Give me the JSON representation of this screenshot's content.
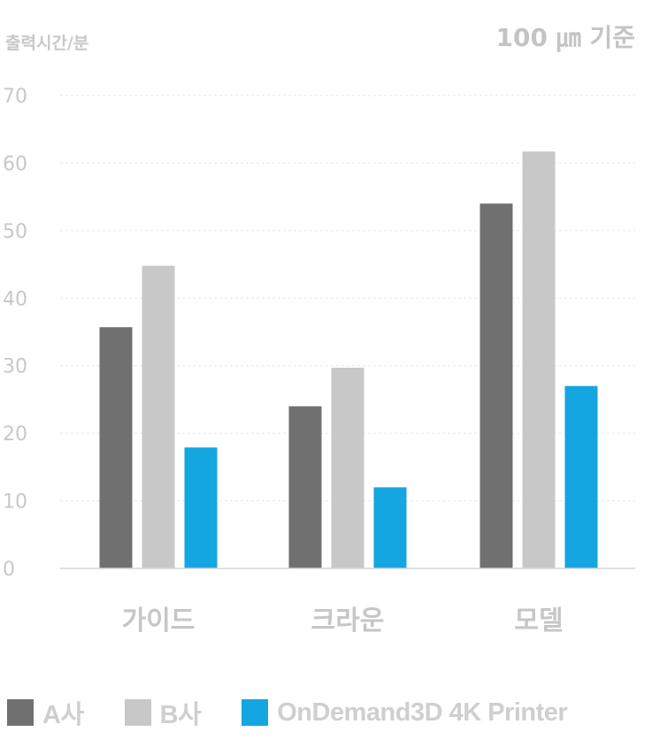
{
  "chart_data": {
    "type": "bar",
    "ylabel": "출력시간/분",
    "note": "100 ㎛ 기준",
    "categories": [
      "가이드",
      "크라운",
      "모델"
    ],
    "ylim": [
      0,
      70
    ],
    "yticks": [
      "0",
      "10",
      "20",
      "30",
      "40",
      "50",
      "60",
      "70"
    ],
    "grid": true,
    "legend_position": "bottom",
    "series": [
      {
        "name": "A사",
        "color": "#707070",
        "values": [
          35.7,
          24,
          54
        ]
      },
      {
        "name": "B사",
        "color": "#c8c8c8",
        "values": [
          44.8,
          29.7,
          61.7
        ]
      },
      {
        "name": "OnDemand3D 4K Printer",
        "color": "#13a6e0",
        "values": [
          17.9,
          12,
          27
        ]
      }
    ]
  }
}
